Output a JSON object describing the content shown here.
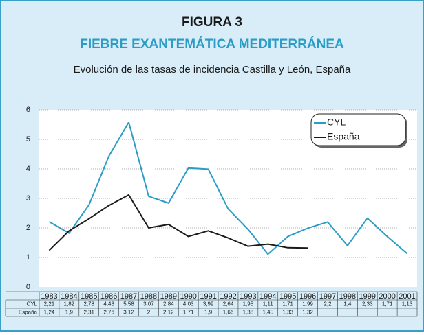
{
  "chart_data": {
    "type": "line",
    "title": "FIGURA 3",
    "subtitle": "FIEBRE EXANTEMÁTICA MEDITERRÁNEA",
    "caption": "Evolución de las tasas de incidencia Castilla y León, España",
    "categories": [
      "1983",
      "1984",
      "1985",
      "1986",
      "1987",
      "1988",
      "1989",
      "1990",
      "1991",
      "1992",
      "1993",
      "1994",
      "1995",
      "1996",
      "1997",
      "1998",
      "1999",
      "2000",
      "2001"
    ],
    "series": [
      {
        "name": "CYL",
        "color": "#2a9cc6",
        "values": [
          2.21,
          1.82,
          2.78,
          4.43,
          5.58,
          3.07,
          2.84,
          4.03,
          3.99,
          2.64,
          1.95,
          1.11,
          1.71,
          1.99,
          2.2,
          1.4,
          2.33,
          1.71,
          1.13
        ],
        "value_labels": [
          "2,21",
          "1,82",
          "2,78",
          "4,43",
          "5,58",
          "3,07",
          "2,84",
          "4,03",
          "3,99",
          "2,64",
          "1,95",
          "1,11",
          "1,71",
          "1,99",
          "2,2",
          "1,4",
          "2,33",
          "1,71",
          "1,13"
        ]
      },
      {
        "name": "España",
        "color": "#1a1a1a",
        "values": [
          1.24,
          1.9,
          2.31,
          2.76,
          3.12,
          2,
          2.12,
          1.71,
          1.9,
          1.66,
          1.38,
          1.45,
          1.33,
          1.32,
          null,
          null,
          null,
          null,
          null
        ],
        "value_labels": [
          "1,24",
          "1,9",
          "2,31",
          "2,76",
          "3,12",
          "2",
          "2,12",
          "1,71",
          "1,9",
          "1,66",
          "1,38",
          "1,45",
          "1,33",
          "1,32",
          null,
          null,
          null,
          null,
          null
        ]
      }
    ],
    "ylim": [
      0,
      6
    ],
    "yticks": [
      0,
      1,
      2,
      3,
      4,
      5,
      6
    ],
    "grid": true,
    "legend": "upper right"
  }
}
